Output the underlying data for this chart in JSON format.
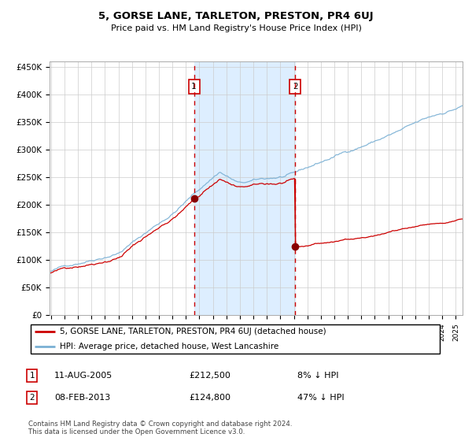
{
  "title": "5, GORSE LANE, TARLETON, PRESTON, PR4 6UJ",
  "subtitle": "Price paid vs. HM Land Registry's House Price Index (HPI)",
  "ylim": [
    0,
    460000
  ],
  "yticks": [
    0,
    50000,
    100000,
    150000,
    200000,
    250000,
    300000,
    350000,
    400000,
    450000
  ],
  "ytick_labels": [
    "£0",
    "£50K",
    "£100K",
    "£150K",
    "£200K",
    "£250K",
    "£300K",
    "£350K",
    "£400K",
    "£450K"
  ],
  "sale1_date_num": 2005.6,
  "sale1_price": 212500,
  "sale1_label": "1",
  "sale1_date_str": "11-AUG-2005",
  "sale1_price_str": "£212,500",
  "sale1_hpi_str": "8% ↓ HPI",
  "sale2_date_num": 2013.1,
  "sale2_price": 124800,
  "sale2_label": "2",
  "sale2_date_str": "08-FEB-2013",
  "sale2_price_str": "£124,800",
  "sale2_hpi_str": "47% ↓ HPI",
  "hpi_line_color": "#7ab0d4",
  "price_color": "#cc0000",
  "shade_color": "#ddeeff",
  "vline_color": "#cc0000",
  "point_color": "#880000",
  "legend1_label": "5, GORSE LANE, TARLETON, PRESTON, PR4 6UJ (detached house)",
  "legend2_label": "HPI: Average price, detached house, West Lancashire",
  "footnote": "Contains HM Land Registry data © Crown copyright and database right 2024.\nThis data is licensed under the Open Government Licence v3.0.",
  "xstart": 1995,
  "xend": 2025,
  "background_color": "#ffffff",
  "grid_color": "#cccccc",
  "label_box_color": "#cc0000"
}
